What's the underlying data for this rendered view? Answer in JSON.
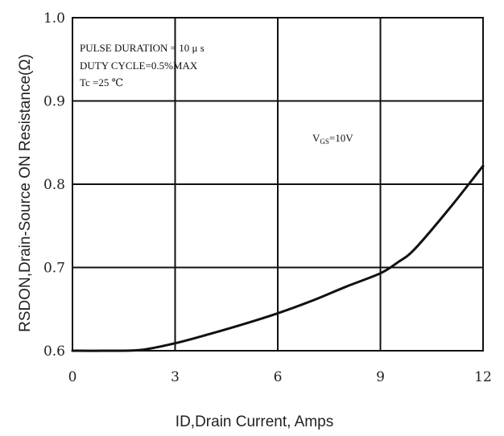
{
  "chart_data": {
    "type": "line",
    "title": "",
    "xlabel": "ID,Drain Current, Amps",
    "ylabel": "RSDON,Drain-Source ON Resistance(Ω)",
    "xlim": [
      0,
      12
    ],
    "ylim": [
      0.6,
      1.0
    ],
    "x_ticks": [
      "0",
      "3",
      "6",
      "9",
      "12"
    ],
    "y_ticks": [
      "0.6",
      "0.7",
      "0.8",
      "0.9",
      "1.0"
    ],
    "grid": true,
    "annotations": [
      "PULSE   DURATION = 10 μ s",
      "DUTY   CYCLE=0.5%MAX",
      "Tc =25  ℃"
    ],
    "vgs_label": {
      "main": "V",
      "sub": "GS",
      "tail": "=10V"
    },
    "series": [
      {
        "name": "",
        "x": [
          0,
          1,
          2,
          3,
          4,
          5,
          6,
          7,
          8,
          9,
          9.5,
          10,
          11,
          12
        ],
        "y": [
          0.6,
          0.6,
          0.601,
          0.609,
          0.62,
          0.632,
          0.645,
          0.66,
          0.677,
          0.693,
          0.706,
          0.722,
          0.77,
          0.822
        ]
      }
    ]
  }
}
